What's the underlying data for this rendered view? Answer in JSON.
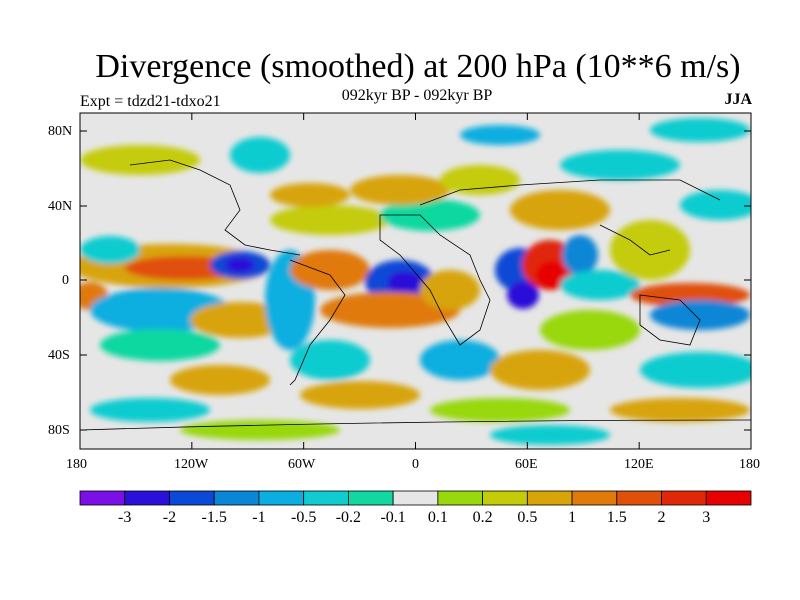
{
  "title": "Divergence (smoothed) at 200 hPa (10**6 m/s)",
  "experiment": "Expt = tdzd21-tdxo21",
  "period": "092kyr BP - 092kyr BP",
  "season": "JJA",
  "y_axis": [
    "80N",
    "40N",
    "0",
    "40S",
    "80S"
  ],
  "x_axis": [
    "180",
    "120W",
    "60W",
    "0",
    "60E",
    "120E",
    "180"
  ],
  "colorbar": {
    "labels": [
      "-3",
      "-2",
      "-1.5",
      "-1",
      "-0.5",
      "-0.2",
      "-0.1",
      "0.1",
      "0.2",
      "0.5",
      "1",
      "1.5",
      "2",
      "3"
    ],
    "colors": [
      "#7a10e6",
      "#2a10d8",
      "#0a4ad6",
      "#0a86d6",
      "#0aaee0",
      "#10ccd0",
      "#10d8a0",
      "#e6e6e6",
      "#98d80c",
      "#c4cc08",
      "#d8a408",
      "#e07a08",
      "#e05008",
      "#e02808",
      "#e60000"
    ]
  }
}
